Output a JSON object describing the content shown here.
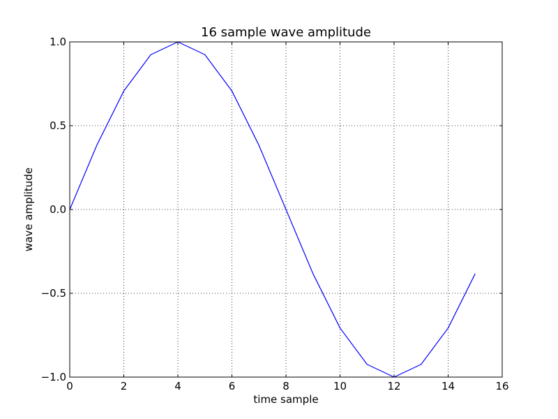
{
  "chart_data": {
    "type": "line",
    "title": "16 sample wave amplitude",
    "xlabel": "time sample",
    "ylabel": "wave amplitude",
    "xlim": [
      0,
      16
    ],
    "ylim": [
      -1.0,
      1.0
    ],
    "xticks": [
      0,
      2,
      4,
      6,
      8,
      10,
      12,
      14,
      16
    ],
    "xtick_labels": [
      "0",
      "2",
      "4",
      "6",
      "8",
      "10",
      "12",
      "14",
      "16"
    ],
    "yticks": [
      1.0,
      0.5,
      0.0,
      -0.5,
      -1.0
    ],
    "ytick_labels": [
      "1.0",
      "0.5",
      "0.0",
      "−0.5",
      "−1.0"
    ],
    "grid": true,
    "series": [
      {
        "color": "#0000ff",
        "x": [
          0,
          1,
          2,
          3,
          4,
          5,
          6,
          7,
          8,
          9,
          10,
          11,
          12,
          13,
          14,
          15
        ],
        "values": [
          0.0,
          0.383,
          0.707,
          0.924,
          1.0,
          0.924,
          0.707,
          0.383,
          0.0,
          -0.383,
          -0.707,
          -0.924,
          -1.0,
          -0.924,
          -0.707,
          -0.383
        ]
      }
    ]
  }
}
